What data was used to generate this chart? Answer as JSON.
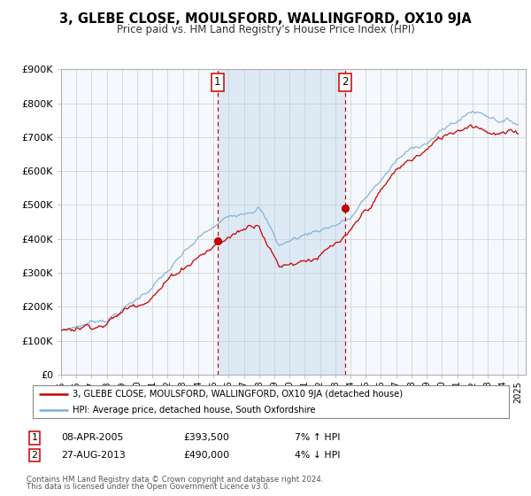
{
  "title": "3, GLEBE CLOSE, MOULSFORD, WALLINGFORD, OX10 9JA",
  "subtitle": "Price paid vs. HM Land Registry's House Price Index (HPI)",
  "ylim": [
    0,
    900000
  ],
  "yticks": [
    0,
    100000,
    200000,
    300000,
    400000,
    500000,
    600000,
    700000,
    800000,
    900000
  ],
  "ytick_labels": [
    "£0",
    "£100K",
    "£200K",
    "£300K",
    "£400K",
    "£500K",
    "£600K",
    "£700K",
    "£800K",
    "£900K"
  ],
  "xlim_start": 1995.0,
  "xlim_end": 2025.5,
  "hpi_color": "#7aafd4",
  "price_color": "#cc0000",
  "bg_color": "#f5f8fc",
  "grid_color": "#cccccc",
  "marker1_year": 2005.27,
  "marker1_value": 393500,
  "marker1_label": "08-APR-2005",
  "marker1_price": "£393,500",
  "marker1_pct": "7% ↑ HPI",
  "marker2_year": 2013.65,
  "marker2_value": 490000,
  "marker2_label": "27-AUG-2013",
  "marker2_price": "£490,000",
  "marker2_pct": "4% ↓ HPI",
  "legend_line1": "3, GLEBE CLOSE, MOULSFORD, WALLINGFORD, OX10 9JA (detached house)",
  "legend_line2": "HPI: Average price, detached house, South Oxfordshire",
  "footer1": "Contains HM Land Registry data © Crown copyright and database right 2024.",
  "footer2": "This data is licensed under the Open Government Licence v3.0.",
  "shade_x1": 2005.27,
  "shade_x2": 2013.65
}
